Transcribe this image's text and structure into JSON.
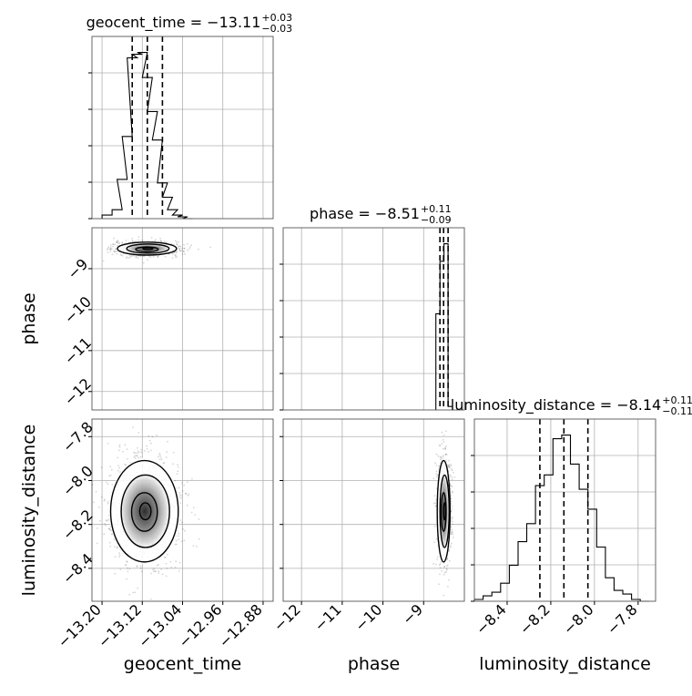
{
  "chart_data": {
    "type": "corner",
    "params": [
      {
        "name": "geocent_time",
        "median": "−13.11",
        "plus": "+0.03",
        "minus": "−0.03",
        "range": [
          -13.22,
          -12.86
        ],
        "ticks": [
          -13.2,
          -13.12,
          -13.04,
          -12.96,
          -12.88
        ],
        "tick_labels": [
          "−13.20",
          "−13.12",
          "−13.04",
          "−12.96",
          "−12.88"
        ],
        "quantiles": [
          -13.14,
          -13.11,
          -13.08
        ]
      },
      {
        "name": "phase",
        "median": "−8.51",
        "plus": "+0.11",
        "minus": "−0.09",
        "range": [
          -12.45,
          -8.0
        ],
        "ticks": [
          -12,
          -11,
          -10,
          -9
        ],
        "tick_labels": [
          "−12",
          "−11",
          "−10",
          "−9"
        ],
        "quantiles": [
          -8.6,
          -8.51,
          -8.4
        ]
      },
      {
        "name": "luminosity_distance",
        "median": "−8.14",
        "plus": "+0.11",
        "minus": "−0.11",
        "range": [
          -8.55,
          -7.72
        ],
        "ticks": [
          -8.4,
          -8.2,
          -8.0,
          -7.8
        ],
        "tick_labels": [
          "−8.4",
          "−8.2",
          "−8.0",
          "−7.8"
        ],
        "quantiles": [
          -8.25,
          -8.14,
          -8.03
        ]
      }
    ],
    "histograms": {
      "geocent_time": {
        "x": [
          -13.19,
          -13.17,
          -13.16,
          -13.15,
          -13.14,
          -13.13,
          -13.12,
          -13.11,
          -13.1,
          -13.09,
          -13.08,
          -13.07,
          -13.06,
          -13.05,
          -13.04,
          -13.03
        ],
        "values": [
          2,
          5,
          22,
          46,
          90,
          92,
          93,
          79,
          60,
          44,
          20,
          12,
          5,
          2,
          1,
          0
        ]
      },
      "phase": {
        "x": [
          -8.65,
          -8.55,
          -8.45,
          -8.35
        ],
        "values": [
          55,
          85,
          95,
          2
        ]
      },
      "luminosity_distance": {
        "x": [
          -8.53,
          -8.49,
          -8.45,
          -8.41,
          -8.37,
          -8.33,
          -8.29,
          -8.25,
          -8.21,
          -8.17,
          -8.13,
          -8.09,
          -8.05,
          -8.01,
          -7.97,
          -7.93,
          -7.89,
          -7.85,
          -7.81,
          -7.77
        ],
        "values": [
          1,
          3,
          5,
          10,
          20,
          33,
          43,
          64,
          70,
          90,
          92,
          76,
          62,
          51,
          30,
          13,
          6,
          4,
          1,
          0
        ]
      }
    },
    "xlabels": [
      "geocent_time",
      "phase",
      "luminosity_distance"
    ],
    "ylabels": [
      "",
      "phase",
      "luminosity_distance"
    ],
    "grid": true
  }
}
